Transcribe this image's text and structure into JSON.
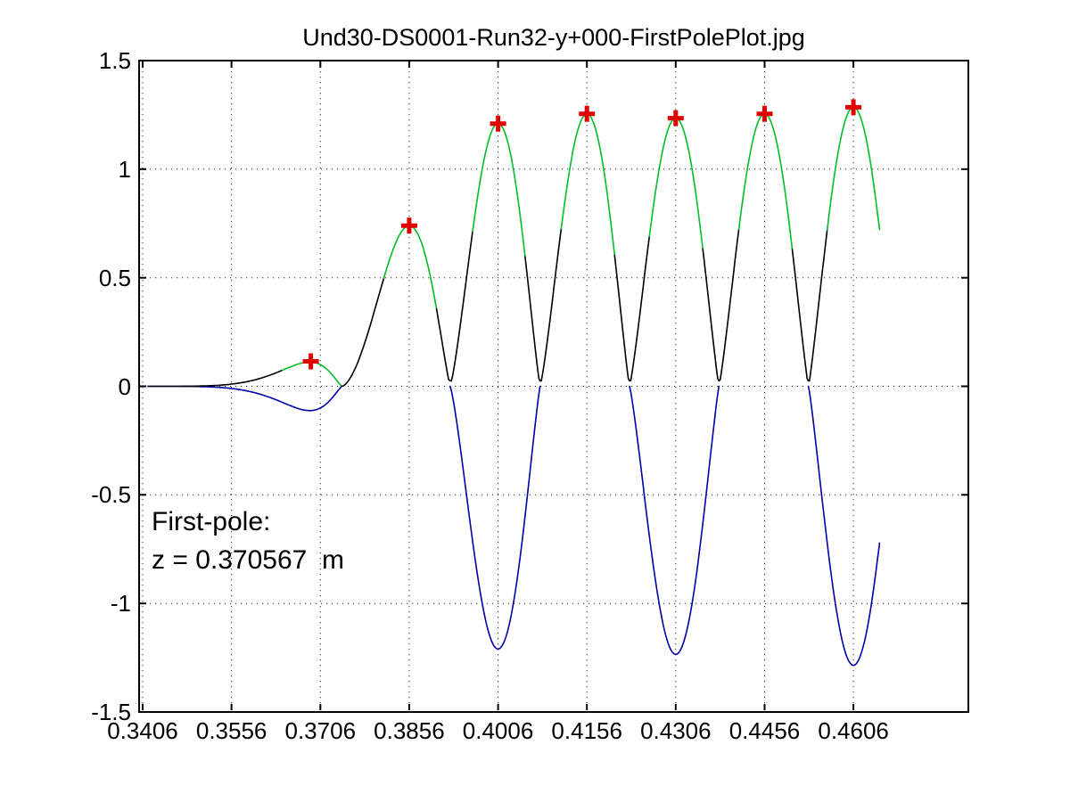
{
  "annotation": {
    "line1": "First-pole:",
    "line2": "z = 0.370567  m"
  },
  "chart_data": {
    "type": "line",
    "title": "Und30-DS0001-Run32-y+000-FirstPolePlot.jpg",
    "xlim": [
      0.34,
      0.48
    ],
    "ylim": [
      -1.5,
      1.5
    ],
    "grid": "dotted",
    "legend": "none",
    "xtick_labels": [
      "0.3406",
      "0.3556",
      "0.3706",
      "0.3856",
      "0.4006",
      "0.4156",
      "0.4306",
      "0.4456",
      "0.4606"
    ],
    "xtick_values": [
      0.3406,
      0.3556,
      0.3706,
      0.3856,
      0.4006,
      0.4156,
      0.4306,
      0.4456,
      0.4606
    ],
    "ytick_labels": [
      "1.5",
      "1",
      "0.5",
      "0",
      "-0.5",
      "-1",
      "-1.5"
    ],
    "ytick_values": [
      1.5,
      1,
      0.5,
      0,
      -0.5,
      -1,
      -1.5
    ],
    "colors": {
      "axes": "#000000",
      "grid": "#000000",
      "magnitude_trace": "#000000",
      "pole_highlight": "#00be28",
      "field_trace": "#0000a8",
      "marker": "#e10000"
    },
    "data_start": 0.3415,
    "data_end": 0.465,
    "first_pole_z_m": 0.370567,
    "lobes": [
      {
        "z1": 0.3415,
        "z2": 0.3742,
        "peak_z": 0.3688,
        "peak_B": -0.112,
        "green_halfwidth": 0.0052
      },
      {
        "z1": 0.3742,
        "z2": 0.3925,
        "peak_z": 0.3856,
        "peak_B": 0.74,
        "green_halfwidth": 0.0045
      },
      {
        "z1": 0.3925,
        "z2": 0.4077,
        "peak_z": 0.4006,
        "peak_B": -1.21,
        "green_halfwidth": 0.0045
      },
      {
        "z1": 0.4077,
        "z2": 0.4228,
        "peak_z": 0.4156,
        "peak_B": 1.255,
        "green_halfwidth": 0.0045
      },
      {
        "z1": 0.4228,
        "z2": 0.4379,
        "peak_z": 0.4306,
        "peak_B": -1.235,
        "green_halfwidth": 0.0045
      },
      {
        "z1": 0.4379,
        "z2": 0.453,
        "peak_z": 0.4456,
        "peak_B": 1.255,
        "green_halfwidth": 0.0045
      },
      {
        "z1": 0.453,
        "z2": 0.4681,
        "peak_z": 0.4606,
        "peak_B": -1.285,
        "green_halfwidth": 0.0045
      }
    ],
    "pole_markers": {
      "symbol": "+",
      "color": "#e10000",
      "points": [
        {
          "z": 0.369,
          "value": 0.115
        },
        {
          "z": 0.3856,
          "value": 0.74
        },
        {
          "z": 0.4006,
          "value": 1.21
        },
        {
          "z": 0.4156,
          "value": 1.255
        },
        {
          "z": 0.4306,
          "value": 1.235
        },
        {
          "z": 0.4456,
          "value": 1.255
        },
        {
          "z": 0.4606,
          "value": 1.285
        }
      ]
    }
  }
}
